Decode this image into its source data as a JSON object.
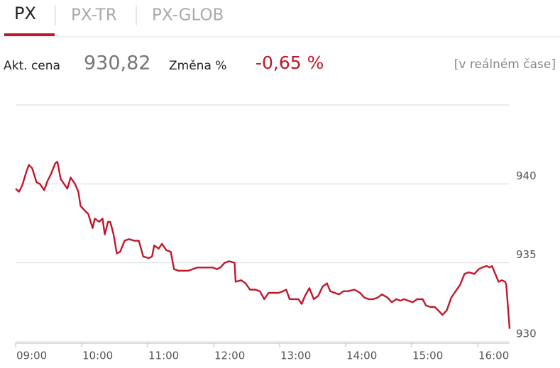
{
  "tabs": [
    "PX",
    "PX-TR",
    "PX-GLOB"
  ],
  "quote": {
    "price_label": "Akt. cena",
    "price": "930,82",
    "change_label": "Změna %",
    "change": "-0,65 %",
    "note": "[v reálném čase]"
  },
  "chart_data": {
    "type": "line",
    "x": [
      540,
      543,
      546,
      549,
      552,
      555,
      559,
      562,
      566,
      569,
      572,
      576,
      578,
      581,
      585,
      587,
      590,
      594,
      597,
      599,
      603,
      606,
      610,
      612,
      616,
      619,
      621,
      624,
      626,
      629,
      632,
      635,
      639,
      643,
      648,
      652,
      656,
      661,
      664,
      666,
      670,
      673,
      677,
      681,
      684,
      688,
      694,
      697,
      701,
      705,
      709,
      714,
      719,
      723,
      726,
      730,
      734,
      739,
      740,
      745,
      749,
      753,
      758,
      762,
      766,
      770,
      773,
      779,
      783,
      786,
      789,
      793,
      797,
      800,
      803,
      807,
      811,
      815,
      819,
      823,
      826,
      830,
      834,
      838,
      842,
      848,
      853,
      857,
      861,
      865,
      869,
      873,
      878,
      882,
      886,
      890,
      893,
      897,
      901,
      905,
      910,
      913,
      917,
      921,
      924,
      928,
      932,
      936,
      940,
      944,
      948,
      952,
      957,
      961,
      964,
      968,
      971,
      973,
      976,
      979,
      982,
      985,
      986,
      989
    ],
    "series": [
      {
        "name": "PX",
        "color": "#c0172b",
        "values": [
          939.7,
          939.5,
          939.9,
          940.6,
          941.2,
          941.0,
          940.1,
          940.0,
          939.6,
          940.2,
          940.6,
          941.3,
          941.4,
          940.3,
          939.9,
          939.7,
          940.4,
          940.0,
          939.5,
          938.6,
          938.3,
          938.1,
          937.2,
          937.8,
          937.6,
          937.8,
          936.8,
          937.6,
          937.6,
          936.8,
          935.6,
          935.7,
          936.4,
          936.5,
          936.4,
          936.4,
          935.4,
          935.3,
          935.4,
          936.1,
          935.9,
          936.2,
          935.8,
          935.7,
          934.6,
          934.5,
          934.5,
          934.5,
          934.6,
          934.7,
          934.7,
          934.7,
          934.7,
          934.6,
          934.7,
          935.0,
          935.1,
          935.0,
          933.8,
          933.9,
          933.7,
          933.3,
          933.3,
          933.2,
          932.7,
          933.1,
          933.1,
          933.1,
          933.2,
          933.3,
          932.7,
          932.7,
          932.7,
          932.4,
          932.9,
          933.4,
          932.7,
          932.9,
          933.5,
          933.7,
          933.2,
          933.1,
          933.0,
          933.2,
          933.2,
          933.3,
          933.1,
          932.8,
          932.7,
          932.7,
          932.8,
          933.0,
          932.8,
          932.5,
          932.7,
          932.6,
          932.7,
          932.6,
          932.5,
          932.7,
          932.7,
          932.3,
          932.2,
          932.2,
          932.0,
          931.7,
          932.0,
          932.8,
          933.2,
          933.6,
          934.3,
          934.4,
          934.3,
          934.6,
          934.7,
          934.8,
          934.7,
          934.8,
          934.3,
          933.8,
          933.9,
          933.8,
          933.6,
          930.82
        ]
      }
    ],
    "xlim": [
      540,
      989
    ],
    "ylim": [
      930,
      945
    ],
    "xticks": [
      {
        "value": 540,
        "label": "09:00"
      },
      {
        "value": 600,
        "label": "10:00"
      },
      {
        "value": 660,
        "label": "11:00"
      },
      {
        "value": 720,
        "label": "12:00"
      },
      {
        "value": 780,
        "label": "13:00"
      },
      {
        "value": 840,
        "label": "14:00"
      },
      {
        "value": 900,
        "label": "15:00"
      },
      {
        "value": 960,
        "label": "16:00"
      }
    ],
    "yticks": [
      930,
      935,
      940
    ],
    "grid": true
  }
}
